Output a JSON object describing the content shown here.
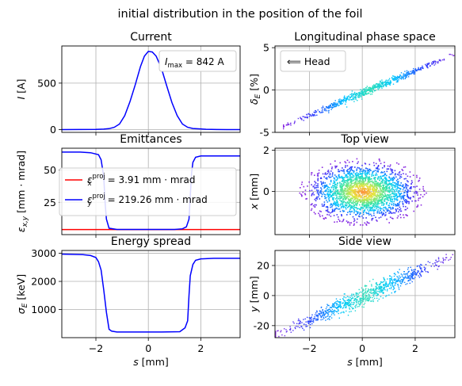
{
  "title": "initial distribution in the position of the foil",
  "colors": {
    "line": "#0000ff",
    "red": "#ff0000",
    "grid": "#b0b0b0"
  },
  "chart_data": [
    {
      "id": "current",
      "type": "line",
      "title": "Current",
      "ylabel_main": "I",
      "ylabel_unit": "[A]",
      "xlim": [
        -3.3,
        3.5
      ],
      "ylim": [
        -30,
        900
      ],
      "yticks": [
        0,
        500
      ],
      "xticks": [
        -2,
        0,
        2
      ],
      "legend": {
        "placement": "top-right",
        "label_var": "I",
        "label_sub": "max",
        "label_val": " = 842 A"
      },
      "series": [
        {
          "x": [
            -3.3,
            -2.0,
            -1.7,
            -1.5,
            -1.3,
            -1.1,
            -0.9,
            -0.7,
            -0.5,
            -0.3,
            -0.15,
            0,
            0.15,
            0.3,
            0.5,
            0.7,
            0.9,
            1.1,
            1.3,
            1.5,
            1.7,
            1.9,
            2.2,
            2.6,
            3.0,
            3.5
          ],
          "y": [
            0,
            2,
            5,
            10,
            25,
            60,
            150,
            300,
            480,
            680,
            790,
            842,
            835,
            790,
            660,
            470,
            290,
            150,
            60,
            25,
            12,
            8,
            3,
            1,
            0,
            0
          ]
        }
      ]
    },
    {
      "id": "phase",
      "type": "scatter",
      "title": "Longitudinal phase space",
      "ylabel_main": "δ",
      "ylabel_sub": "E",
      "ylabel_unit": "[%]",
      "xlim": [
        -3.3,
        3.5
      ],
      "ylim": [
        -5,
        5.2
      ],
      "yticks": [
        -5,
        0,
        5
      ],
      "xticks": [
        -2,
        0,
        2
      ],
      "legend": {
        "placement": "top-left",
        "label": "⟸ Head"
      },
      "band": {
        "x_start": -3.0,
        "x_end": 3.5,
        "y_start": -4.2,
        "y_end": 4.3
      }
    },
    {
      "id": "emittance",
      "type": "line",
      "title": "Emittances",
      "ylabel_main": "ε",
      "ylabel_sub": "x,y",
      "ylabel_unit": "[mm · mrad]",
      "xlim": [
        -3.3,
        3.5
      ],
      "ylim": [
        0,
        67
      ],
      "yticks": [
        25,
        50
      ],
      "xticks": [
        -2,
        0,
        2
      ],
      "legend": {
        "placement": "center-left",
        "entries": [
          {
            "var": "ε",
            "sup": "proj",
            "sub": "x",
            "val": " = 3.91 mm · mrad"
          },
          {
            "var": "ε",
            "sup": "proj",
            "sub": "y",
            "val": " = 219.26 mm · mrad"
          }
        ]
      },
      "series": [
        {
          "name_ref": "x",
          "x": [
            -3.3,
            3.5
          ],
          "y": [
            3.91,
            3.91
          ]
        },
        {
          "name_ref": "y",
          "x": [
            -3.3,
            -2.6,
            -2.2,
            -1.9,
            -1.8,
            -1.7,
            -1.65,
            -1.6,
            -1.5,
            -1.2,
            -0.5,
            0.5,
            1.0,
            1.3,
            1.45,
            1.55,
            1.6,
            1.65,
            1.7,
            1.8,
            2.0,
            2.5,
            3.0,
            3.5
          ],
          "y": [
            64,
            64,
            63.5,
            62,
            58,
            45,
            25,
            12,
            5,
            4,
            4,
            4,
            4,
            4.5,
            6,
            12,
            30,
            48,
            56,
            60,
            61,
            61,
            61,
            61
          ]
        }
      ]
    },
    {
      "id": "topview",
      "type": "heatmap",
      "title": "Top view",
      "ylabel_main": "x",
      "ylabel_unit": "[mm]",
      "xlim": [
        -3.3,
        3.5
      ],
      "ylim": [
        -2.1,
        2.1
      ],
      "yticks": [
        0,
        2
      ],
      "xticks": [
        -2,
        0,
        2
      ],
      "cloud": {
        "cx": 0,
        "cy": 0,
        "rx": 2.3,
        "ry": 1.6
      }
    },
    {
      "id": "energy",
      "type": "line",
      "title": "Energy spread",
      "ylabel_main": "σ",
      "ylabel_sub": "E",
      "ylabel_unit": "[keV]",
      "xlabel_main": "s",
      "xlabel_unit": "[mm]",
      "xlim": [
        -3.3,
        3.5
      ],
      "ylim": [
        0,
        3100
      ],
      "yticks": [
        1000,
        2000,
        3000
      ],
      "xticks": [
        -2,
        0,
        2
      ],
      "series": [
        {
          "x": [
            -3.3,
            -2.5,
            -2.2,
            -2.0,
            -1.9,
            -1.8,
            -1.7,
            -1.6,
            -1.5,
            -1.4,
            -1.2,
            -0.5,
            0.5,
            1.2,
            1.4,
            1.5,
            1.55,
            1.6,
            1.7,
            1.8,
            2.0,
            2.5,
            3.5
          ],
          "y": [
            2970,
            2950,
            2920,
            2850,
            2700,
            2400,
            1700,
            900,
            300,
            230,
            200,
            200,
            200,
            210,
            350,
            600,
            1500,
            2200,
            2600,
            2750,
            2800,
            2820,
            2820
          ]
        }
      ]
    },
    {
      "id": "sideview",
      "type": "scatter",
      "title": "Side view",
      "ylabel_main": "y",
      "ylabel_unit": "[mm]",
      "xlabel_main": "s",
      "xlabel_unit": "[mm]",
      "xlim": [
        -3.3,
        3.5
      ],
      "ylim": [
        -28,
        30
      ],
      "yticks": [
        -20,
        0,
        20
      ],
      "xticks": [
        -2,
        0,
        2
      ],
      "band": {
        "x_start": -3.3,
        "x_end": 3.5,
        "y_start": -26,
        "y_end": 27
      }
    }
  ]
}
